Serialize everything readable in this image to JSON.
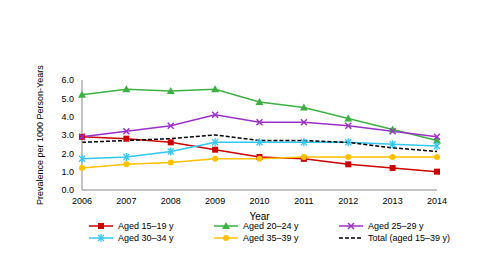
{
  "chart_data": {
    "type": "line",
    "x_label": "Year",
    "y_label": "Prevalence per 1000 Person-Years",
    "categories": [
      "2006",
      "2007",
      "2008",
      "2009",
      "2010",
      "2011",
      "2012",
      "2013",
      "2014"
    ],
    "series": [
      {
        "name": "Aged 15–19 y",
        "color": "#cc0000",
        "marker": "square",
        "line_style": "solid",
        "values": [
          2.9,
          2.8,
          2.6,
          2.2,
          1.8,
          1.7,
          1.4,
          1.2,
          1.0
        ]
      },
      {
        "name": "Aged 20–24 y",
        "color": "#3cb043",
        "marker": "triangle",
        "line_style": "solid",
        "values": [
          5.2,
          5.5,
          5.4,
          5.5,
          4.8,
          4.5,
          3.9,
          3.3,
          2.7
        ]
      },
      {
        "name": "Aged 25–29 y",
        "color": "#9b30c8",
        "marker": "x",
        "line_style": "solid",
        "values": [
          2.9,
          3.2,
          3.5,
          4.1,
          3.7,
          3.7,
          3.5,
          3.2,
          2.9
        ]
      },
      {
        "name": "Aged 30–34 y",
        "color": "#33c6f4",
        "marker": "asterisk",
        "line_style": "solid",
        "values": [
          1.7,
          1.8,
          2.1,
          2.6,
          2.6,
          2.6,
          2.6,
          2.5,
          2.4
        ]
      },
      {
        "name": "Aged 35–39 y",
        "color": "#ffc000",
        "marker": "circle",
        "line_style": "solid",
        "values": [
          1.2,
          1.4,
          1.5,
          1.7,
          1.7,
          1.8,
          1.8,
          1.8,
          1.8
        ]
      },
      {
        "name": "Total (aged 15–39 y)",
        "color": "#000000",
        "marker": "none",
        "line_style": "dashed",
        "values": [
          2.6,
          2.7,
          2.8,
          3.0,
          2.7,
          2.7,
          2.6,
          2.3,
          2.1
        ]
      }
    ],
    "ylim": [
      0,
      6
    ],
    "yticks": [
      {
        "value": 0,
        "label": "0.0"
      },
      {
        "value": 1,
        "label": "1.0"
      },
      {
        "value": 2,
        "label": "2.0"
      },
      {
        "value": 3,
        "label": "3.0"
      },
      {
        "value": 4,
        "label": "4.0"
      },
      {
        "value": 5,
        "label": "5.0"
      },
      {
        "value": 6,
        "label": "6.0"
      }
    ],
    "grid": false,
    "legend": "bottom"
  }
}
